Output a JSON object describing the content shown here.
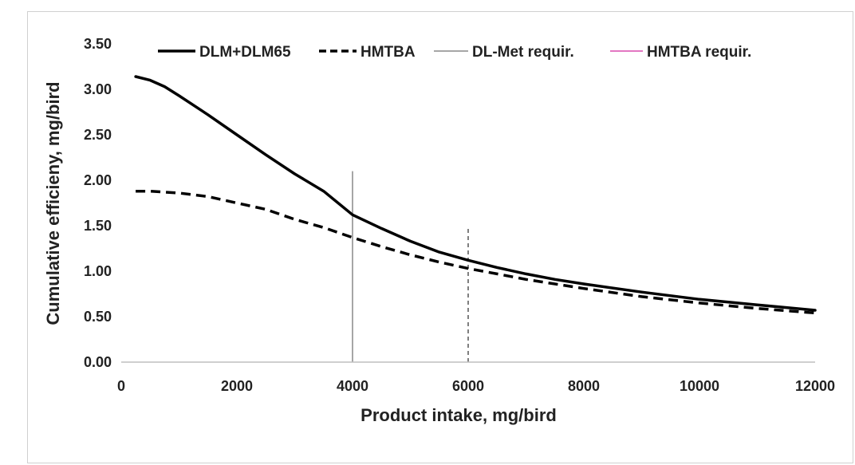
{
  "chart_data": {
    "type": "line",
    "title": "",
    "xlabel": "Product intake, mg/bird",
    "ylabel": "Cumulative efficieny, mg/bird",
    "xlim": [
      0,
      12000
    ],
    "ylim": [
      0,
      3.5
    ],
    "x_ticks": [
      "0",
      "2000",
      "4000",
      "6000",
      "8000",
      "10000",
      "12000"
    ],
    "y_ticks": [
      "0.00",
      "0.50",
      "1.00",
      "1.50",
      "2.00",
      "2.50",
      "3.00",
      "3.50"
    ],
    "grid": false,
    "legend_position": "top",
    "series": [
      {
        "name": "DLM+DLM65",
        "style": "solid",
        "color": "#000000",
        "x": [
          250,
          500,
          750,
          1000,
          1500,
          2000,
          2500,
          3000,
          3500,
          4000,
          4500,
          5000,
          5500,
          6000,
          6500,
          7000,
          7500,
          8000,
          9000,
          10000,
          11000,
          12000
        ],
        "y": [
          3.14,
          3.1,
          3.03,
          2.93,
          2.72,
          2.5,
          2.28,
          2.07,
          1.88,
          1.62,
          1.47,
          1.33,
          1.21,
          1.12,
          1.04,
          0.97,
          0.91,
          0.86,
          0.77,
          0.69,
          0.63,
          0.57
        ]
      },
      {
        "name": "HMTBA",
        "style": "dashed",
        "color": "#000000",
        "x": [
          250,
          500,
          1000,
          1500,
          2000,
          2500,
          3000,
          3500,
          4000,
          4500,
          5000,
          5500,
          6000,
          6500,
          7000,
          8000,
          9000,
          10000,
          11000,
          12000
        ],
        "y": [
          1.88,
          1.88,
          1.86,
          1.82,
          1.75,
          1.68,
          1.57,
          1.48,
          1.37,
          1.27,
          1.18,
          1.1,
          1.03,
          0.97,
          0.91,
          0.81,
          0.72,
          0.65,
          0.59,
          0.54
        ]
      }
    ],
    "reference_lines": [
      {
        "name": "DL-Met requir.",
        "x": 4000,
        "y_top": 2.1,
        "style": "solid",
        "color": "#a6a6a6"
      },
      {
        "name": "HMTBA requir.",
        "x": 6000,
        "y_top": 1.5,
        "style": "dashed",
        "color": "#7f7f7f",
        "legend_color": "#e377c2"
      }
    ]
  }
}
